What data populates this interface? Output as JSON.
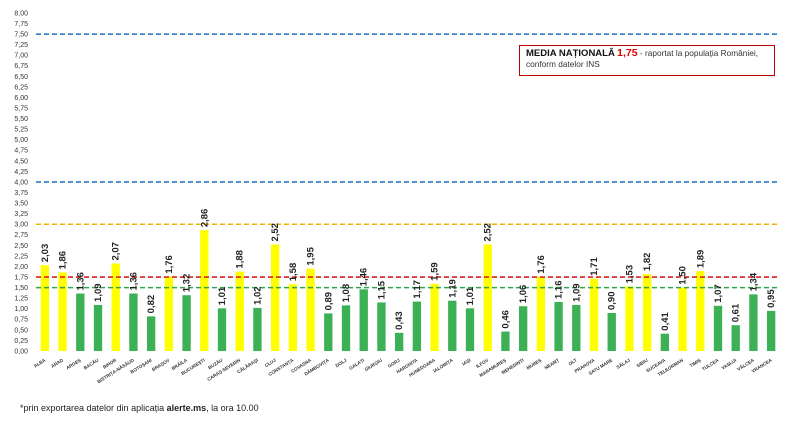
{
  "chart_data": {
    "type": "bar",
    "categories": [
      "ALBA",
      "ARAD",
      "ARGEȘ",
      "BACĂU",
      "BIHOR",
      "BISTRIȚA-NĂSĂUD",
      "BOTOȘANI",
      "BRAȘOV",
      "BRĂILA",
      "BUCUREȘTI",
      "BUZĂU",
      "CARAȘ-SEVERIN",
      "CĂLĂRAȘI",
      "CLUJ",
      "CONSTANȚA",
      "COVASNA",
      "DÂMBOVIȚA",
      "DOLJ",
      "GALAȚI",
      "GIURGIU",
      "GORJ",
      "HARGHITA",
      "HUNEDOARA",
      "IALOMIȚA",
      "IAȘI",
      "ILFOV",
      "MARAMUREȘ",
      "MEHEDINȚI",
      "MUREȘ",
      "NEAMȚ",
      "OLT",
      "PRAHOVA",
      "SATU MARE",
      "SĂLAJ",
      "SIBIU",
      "SUCEAVA",
      "TELEORMAN",
      "TIMIȘ",
      "TULCEA",
      "VASLUI",
      "VÂLCEA",
      "VRANCEA"
    ],
    "values": [
      2.03,
      1.86,
      1.36,
      1.09,
      2.07,
      1.36,
      0.82,
      1.76,
      1.32,
      2.86,
      1.01,
      1.88,
      1.02,
      2.52,
      1.58,
      1.95,
      0.89,
      1.08,
      1.46,
      1.15,
      0.43,
      1.17,
      1.59,
      1.19,
      1.01,
      2.52,
      0.46,
      1.06,
      1.76,
      1.16,
      1.09,
      1.71,
      0.9,
      1.53,
      1.82,
      0.41,
      1.5,
      1.89,
      1.07,
      0.61,
      1.34,
      0.95
    ],
    "value_labels": [
      "2,03",
      "1,86",
      "1,36",
      "1,09",
      "2,07",
      "1,36",
      "0,82",
      "1,76",
      "1,32",
      "2,86",
      "1,01",
      "1,88",
      "1,02",
      "2,52",
      "1,58",
      "1,95",
      "0,89",
      "1,08",
      "1,46",
      "1,15",
      "0,43",
      "1,17",
      "1,59",
      "1,19",
      "1,01",
      "2,52",
      "0,46",
      "1,06",
      "1,76",
      "1,16",
      "1,09",
      "1,71",
      "0,90",
      "1,53",
      "1,82",
      "0,41",
      "1,50",
      "1,89",
      "1,07",
      "0,61",
      "1,34",
      "0,95"
    ],
    "bar_colors": [
      "yellow",
      "yellow",
      "green",
      "green",
      "yellow",
      "green",
      "green",
      "yellow",
      "green",
      "yellow",
      "green",
      "yellow",
      "green",
      "yellow",
      "yellow",
      "yellow",
      "green",
      "green",
      "green",
      "green",
      "green",
      "green",
      "yellow",
      "green",
      "green",
      "yellow",
      "green",
      "green",
      "yellow",
      "green",
      "green",
      "yellow",
      "green",
      "yellow",
      "yellow",
      "green",
      "yellow",
      "yellow",
      "green",
      "green",
      "green",
      "green"
    ],
    "colors": {
      "yellow": "#ffff00",
      "green": "#3cb054"
    },
    "ylim": [
      0,
      8
    ],
    "yticks": [
      "0,00",
      "0,25",
      "0,50",
      "0,75",
      "1,00",
      "1,25",
      "1,50",
      "1,75",
      "2,00",
      "2,25",
      "2,50",
      "2,75",
      "3,00",
      "3,25",
      "3,50",
      "3,75",
      "4,00",
      "4,25",
      "4,50",
      "4,75",
      "5,00",
      "5,25",
      "5,50",
      "5,75",
      "6,00",
      "6,25",
      "6,50",
      "6,75",
      "7,00",
      "7,25",
      "7,50",
      "7,75",
      "8,00"
    ],
    "reference_lines": [
      {
        "value": 7.5,
        "color": "#1f6fc0"
      },
      {
        "value": 4.0,
        "color": "#1f6fc0"
      },
      {
        "value": 3.0,
        "color": "#f0b400"
      },
      {
        "value": 1.75,
        "color": "#e02020"
      },
      {
        "value": 1.5,
        "color": "#2ea84a"
      }
    ],
    "grid": false
  },
  "annotation": {
    "head": "MEDIA NAȚIONALĂ",
    "value": "1,75",
    "text": " - raportat la populația României, conform datelor INS"
  },
  "footnote": {
    "prefix": "*prin exportarea datelor din aplicația ",
    "bold": "alerte.ms",
    "suffix": ", la ora 10.00"
  }
}
